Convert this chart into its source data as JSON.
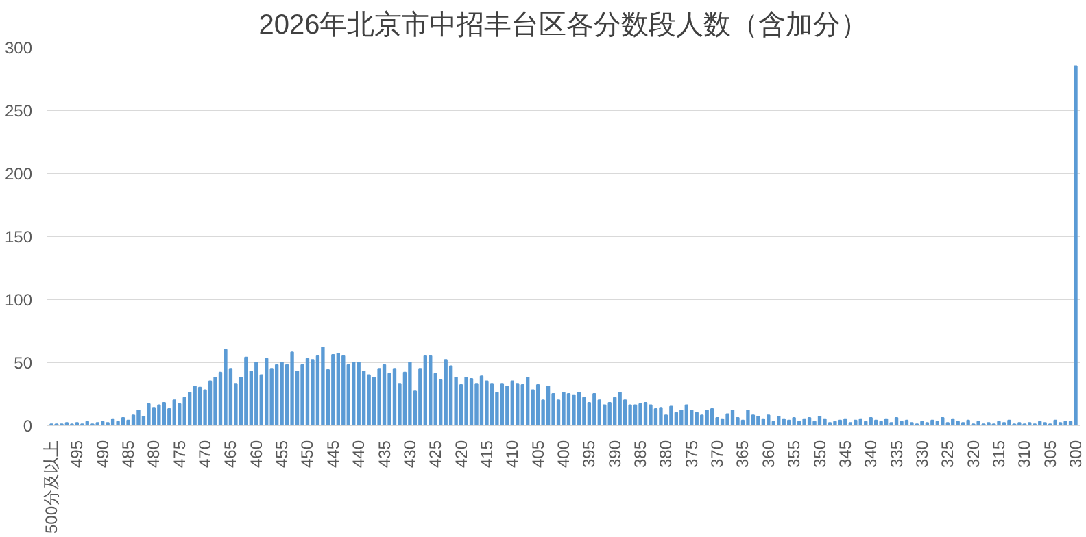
{
  "chart_data": {
    "type": "bar",
    "title": "2026年北京市中招丰台区各分数段人数（含加分）",
    "categories": [
      "500分及以上",
      null,
      null,
      null,
      null,
      "495",
      null,
      null,
      null,
      null,
      "490",
      null,
      null,
      null,
      null,
      "485",
      null,
      null,
      null,
      null,
      "480",
      null,
      null,
      null,
      null,
      "475",
      null,
      null,
      null,
      null,
      "470",
      null,
      null,
      null,
      null,
      "465",
      null,
      null,
      null,
      null,
      "460",
      null,
      null,
      null,
      null,
      "455",
      null,
      null,
      null,
      null,
      "450",
      null,
      null,
      null,
      null,
      "445",
      null,
      null,
      null,
      null,
      "440",
      null,
      null,
      null,
      null,
      "435",
      null,
      null,
      null,
      null,
      "430",
      null,
      null,
      null,
      null,
      "425",
      null,
      null,
      null,
      null,
      "420",
      null,
      null,
      null,
      null,
      "415",
      null,
      null,
      null,
      null,
      "410",
      null,
      null,
      null,
      null,
      "405",
      null,
      null,
      null,
      null,
      "400",
      null,
      null,
      null,
      null,
      "395",
      null,
      null,
      null,
      null,
      "390",
      null,
      null,
      null,
      null,
      "385",
      null,
      null,
      null,
      null,
      "380",
      null,
      null,
      null,
      null,
      "375",
      null,
      null,
      null,
      null,
      "370",
      null,
      null,
      null,
      null,
      "365",
      null,
      null,
      null,
      null,
      "360",
      null,
      null,
      null,
      null,
      "355",
      null,
      null,
      null,
      null,
      "350",
      null,
      null,
      null,
      null,
      "345",
      null,
      null,
      null,
      null,
      "340",
      null,
      null,
      null,
      null,
      "335",
      null,
      null,
      null,
      null,
      "330",
      null,
      null,
      null,
      null,
      "325",
      null,
      null,
      null,
      null,
      "320",
      null,
      null,
      null,
      null,
      "315",
      null,
      null,
      null,
      null,
      "310",
      null,
      null,
      null,
      null,
      "305",
      null,
      null,
      null,
      null,
      "300"
    ],
    "values": [
      1,
      1,
      1,
      2,
      1,
      2,
      1,
      3,
      1,
      2,
      3,
      2,
      5,
      3,
      6,
      4,
      8,
      12,
      7,
      17,
      14,
      16,
      18,
      13,
      20,
      17,
      22,
      26,
      31,
      30,
      28,
      35,
      38,
      42,
      60,
      45,
      33,
      38,
      54,
      43,
      50,
      40,
      53,
      45,
      48,
      50,
      48,
      58,
      43,
      48,
      53,
      52,
      55,
      62,
      44,
      56,
      57,
      55,
      48,
      50,
      50,
      43,
      40,
      38,
      45,
      48,
      41,
      45,
      33,
      42,
      50,
      27,
      45,
      55,
      55,
      41,
      36,
      52,
      47,
      38,
      32,
      38,
      37,
      33,
      39,
      35,
      33,
      26,
      33,
      31,
      35,
      33,
      32,
      38,
      28,
      32,
      20,
      31,
      25,
      20,
      26,
      25,
      24,
      26,
      22,
      18,
      25,
      20,
      16,
      18,
      22,
      26,
      20,
      16,
      16,
      17,
      18,
      16,
      13,
      14,
      8,
      15,
      10,
      12,
      16,
      12,
      10,
      8,
      12,
      13,
      6,
      5,
      9,
      12,
      6,
      4,
      12,
      8,
      7,
      5,
      8,
      3,
      7,
      5,
      4,
      6,
      3,
      5,
      6,
      3,
      7,
      5,
      2,
      3,
      4,
      5,
      2,
      4,
      5,
      3,
      6,
      4,
      3,
      5,
      2,
      6,
      3,
      4,
      2,
      1,
      3,
      2,
      4,
      3,
      6,
      2,
      5,
      3,
      2,
      4,
      1,
      3,
      1,
      2,
      1,
      3,
      2,
      4,
      1,
      2,
      1,
      2,
      1,
      3,
      2,
      1,
      4,
      2,
      3,
      3,
      285
    ],
    "color": "#5b9bd5",
    "ylim": [
      0,
      300
    ],
    "yticks": [
      0,
      50,
      100,
      150,
      200,
      250,
      300
    ],
    "grid": "y"
  }
}
